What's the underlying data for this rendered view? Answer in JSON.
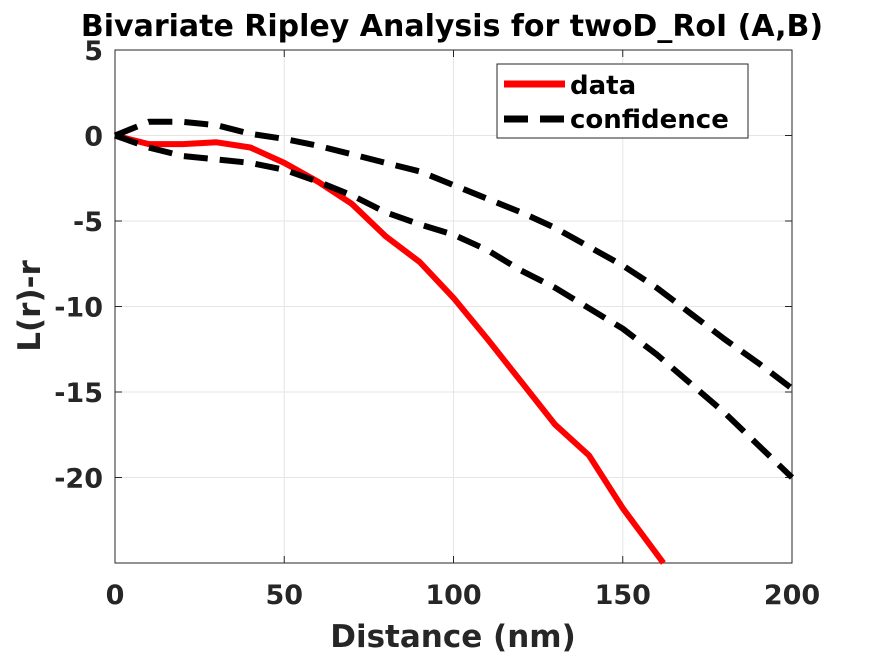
{
  "chart_data": {
    "type": "line",
    "title": "Bivariate Ripley Analysis for twoD_RoI (A,B)",
    "xlabel": "Distance (nm)",
    "ylabel": "L(r)-r",
    "xlim": [
      0,
      200
    ],
    "ylim": [
      -25,
      5
    ],
    "xticks": [
      0,
      50,
      100,
      150,
      200
    ],
    "xtick_labels": [
      "0",
      "50",
      "100",
      "150",
      "200"
    ],
    "yticks": [
      5,
      0,
      -5,
      -10,
      -15,
      -20
    ],
    "ytick_labels": [
      "5",
      "0",
      "-5",
      "-10",
      "-15",
      "-20"
    ],
    "grid": true,
    "legend_position": "top-right",
    "legend": [
      {
        "label": "data",
        "color": "#ff0000",
        "style": "solid"
      },
      {
        "label": "confidence",
        "color": "#000000",
        "style": "dashed"
      }
    ],
    "series": [
      {
        "name": "data",
        "color": "#ff0000",
        "style": "solid",
        "x": [
          0,
          10,
          20,
          30,
          40,
          50,
          60,
          70,
          80,
          90,
          100,
          110,
          120,
          130,
          140,
          150,
          162
        ],
        "y": [
          0,
          -0.5,
          -0.5,
          -0.4,
          -0.7,
          -1.6,
          -2.7,
          -4.0,
          -5.9,
          -7.4,
          -9.5,
          -11.9,
          -14.4,
          -16.9,
          -18.7,
          -21.8,
          -25
        ]
      },
      {
        "name": "confidence",
        "color": "#000000",
        "style": "dashed",
        "x": [
          0,
          10,
          20,
          30,
          40,
          50,
          60,
          70,
          80,
          90,
          100,
          110,
          120,
          130,
          140,
          150,
          160,
          170,
          180,
          190,
          200
        ],
        "y": [
          0,
          0.8,
          0.8,
          0.6,
          0.1,
          -0.2,
          -0.6,
          -1.1,
          -1.6,
          -2.1,
          -2.9,
          -3.7,
          -4.5,
          -5.4,
          -6.5,
          -7.6,
          -8.9,
          -10.4,
          -11.9,
          -13.3,
          -14.8
        ]
      },
      {
        "name": "confidence",
        "color": "#000000",
        "style": "dashed",
        "x": [
          0,
          10,
          20,
          30,
          40,
          50,
          60,
          70,
          80,
          90,
          100,
          110,
          120,
          130,
          140,
          150,
          160,
          170,
          180,
          190,
          200
        ],
        "y": [
          0,
          -0.7,
          -1.2,
          -1.4,
          -1.6,
          -2.0,
          -2.7,
          -3.5,
          -4.5,
          -5.2,
          -5.8,
          -6.7,
          -7.9,
          -8.9,
          -10.1,
          -11.3,
          -12.8,
          -14.5,
          -16.2,
          -18.1,
          -20.0
        ]
      }
    ]
  }
}
